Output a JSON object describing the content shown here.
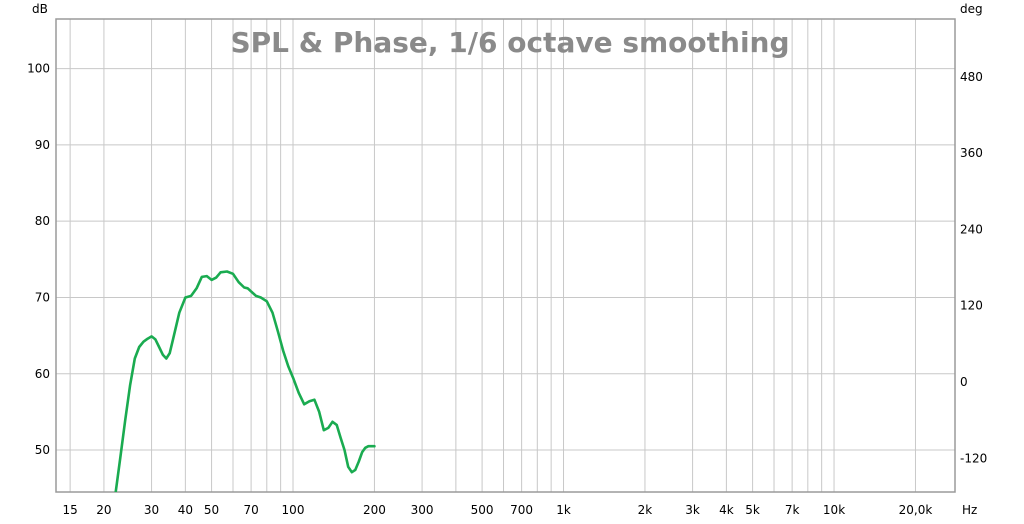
{
  "chart_data": {
    "type": "line",
    "title": "SPL & Phase, 1/6 octave smoothing",
    "y_unit_left": "dB",
    "y_unit_right": "deg",
    "x_unit": "Hz",
    "x_scale": "log",
    "xlim": [
      13.3,
      28000
    ],
    "ylim_left": [
      44.5,
      106.5
    ],
    "ylim_right": [
      -173,
      571
    ],
    "grid": true,
    "x_ticks": [
      {
        "value": 15,
        "label": "15"
      },
      {
        "value": 20,
        "label": "20"
      },
      {
        "value": 30,
        "label": "30"
      },
      {
        "value": 40,
        "label": "40"
      },
      {
        "value": 50,
        "label": "50"
      },
      {
        "value": 70,
        "label": "70"
      },
      {
        "value": 100,
        "label": "100"
      },
      {
        "value": 200,
        "label": "200"
      },
      {
        "value": 300,
        "label": "300"
      },
      {
        "value": 500,
        "label": "500"
      },
      {
        "value": 700,
        "label": "700"
      },
      {
        "value": 1000,
        "label": "1k"
      },
      {
        "value": 2000,
        "label": "2k"
      },
      {
        "value": 3000,
        "label": "3k"
      },
      {
        "value": 4000,
        "label": "4k"
      },
      {
        "value": 5000,
        "label": "5k"
      },
      {
        "value": 7000,
        "label": "7k"
      },
      {
        "value": 10000,
        "label": "10k"
      },
      {
        "value": 20000,
        "label": "20,0k"
      }
    ],
    "x_minor_gridlines": [
      60,
      80,
      90,
      400,
      600,
      800,
      900,
      6000,
      8000,
      9000
    ],
    "y_ticks_left": [
      {
        "value": 50,
        "label": "50"
      },
      {
        "value": 60,
        "label": "60"
      },
      {
        "value": 70,
        "label": "70"
      },
      {
        "value": 80,
        "label": "80"
      },
      {
        "value": 90,
        "label": "90"
      },
      {
        "value": 100,
        "label": "100"
      }
    ],
    "y_ticks_right": [
      {
        "value": -120,
        "label": "-120"
      },
      {
        "value": 0,
        "label": "0"
      },
      {
        "value": 120,
        "label": "120"
      },
      {
        "value": 240,
        "label": "240"
      },
      {
        "value": 360,
        "label": "360"
      },
      {
        "value": 480,
        "label": "480"
      }
    ],
    "series": [
      {
        "color": "#1aab50",
        "x": [
          22.1,
          23,
          24,
          25,
          26,
          27,
          28,
          29,
          30,
          31,
          32,
          33,
          34,
          35,
          36,
          38,
          40,
          42,
          44,
          46,
          48,
          50,
          52,
          54,
          57,
          60,
          63,
          66,
          68,
          70,
          73,
          76,
          80,
          84,
          88,
          92,
          96,
          100,
          105,
          110,
          115,
          120,
          125,
          130,
          135,
          140,
          145,
          150,
          155,
          160,
          165,
          170,
          175,
          180,
          185,
          190,
          195,
          200
        ],
        "y": [
          44.5,
          49,
          54,
          58.5,
          62,
          63.5,
          64.2,
          64.6,
          64.9,
          64.5,
          63.5,
          62.5,
          62,
          62.7,
          64.5,
          68,
          70,
          70.2,
          71.2,
          72.7,
          72.8,
          72.3,
          72.6,
          73.3,
          73.4,
          73.1,
          72,
          71.3,
          71.2,
          70.8,
          70.2,
          70,
          69.5,
          68,
          65.5,
          63,
          61,
          59.5,
          57.5,
          56,
          56.4,
          56.6,
          55,
          52.6,
          52.9,
          53.7,
          53.3,
          51.6,
          50,
          47.8,
          47.1,
          47.4,
          48.5,
          49.7,
          50.3,
          50.5,
          50.5,
          50.5
        ]
      }
    ]
  }
}
